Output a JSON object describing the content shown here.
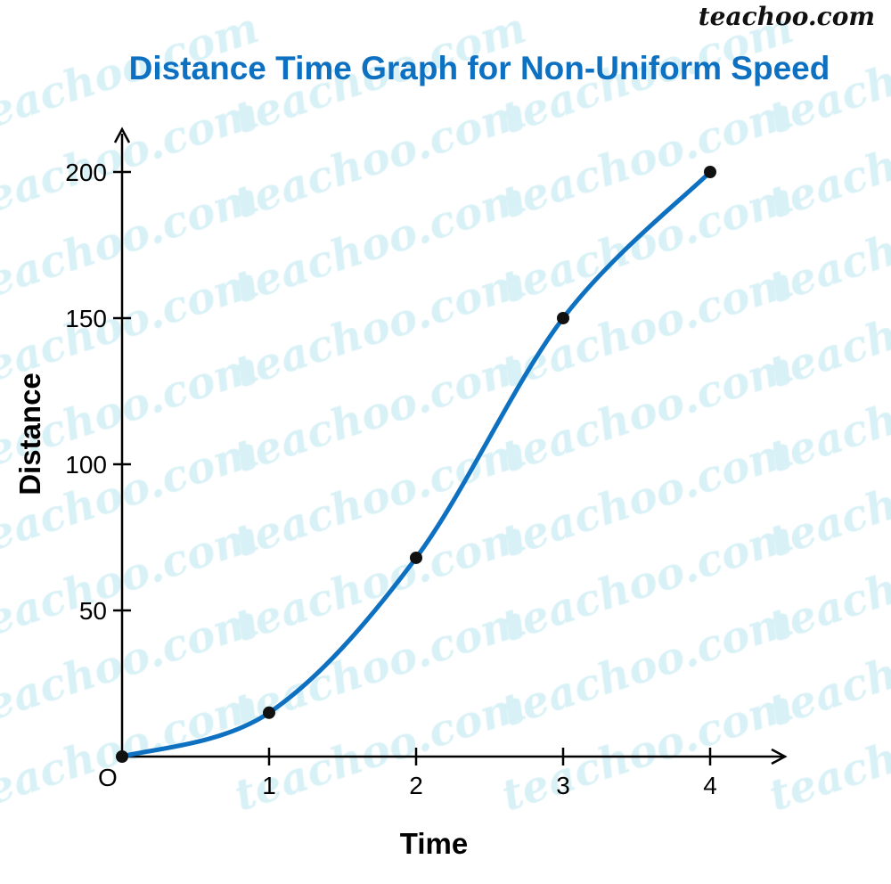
{
  "logo_text": "teachoo.com",
  "watermark_text": "teachoo.com",
  "colors": {
    "title": "#0e70c0",
    "curve": "#0e70c0",
    "watermark": "#d8f1f6",
    "axis": "#000000"
  },
  "chart_data": {
    "type": "line",
    "title": "Distance Time Graph for Non-Uniform Speed",
    "xlabel": "Time",
    "ylabel": "Distance",
    "origin_label": "O",
    "x": [
      0,
      1,
      2,
      3,
      4
    ],
    "y": [
      0,
      15,
      68,
      150,
      200
    ],
    "xticks": [
      "1",
      "2",
      "3",
      "4"
    ],
    "xtick_values": [
      1,
      2,
      3,
      4
    ],
    "yticks": [
      "50",
      "100",
      "150",
      "200"
    ],
    "ytick_values": [
      50,
      100,
      150,
      200
    ],
    "xlim": [
      0,
      4.5
    ],
    "ylim": [
      0,
      215
    ],
    "smooth": true,
    "markers": true,
    "grid": false
  }
}
